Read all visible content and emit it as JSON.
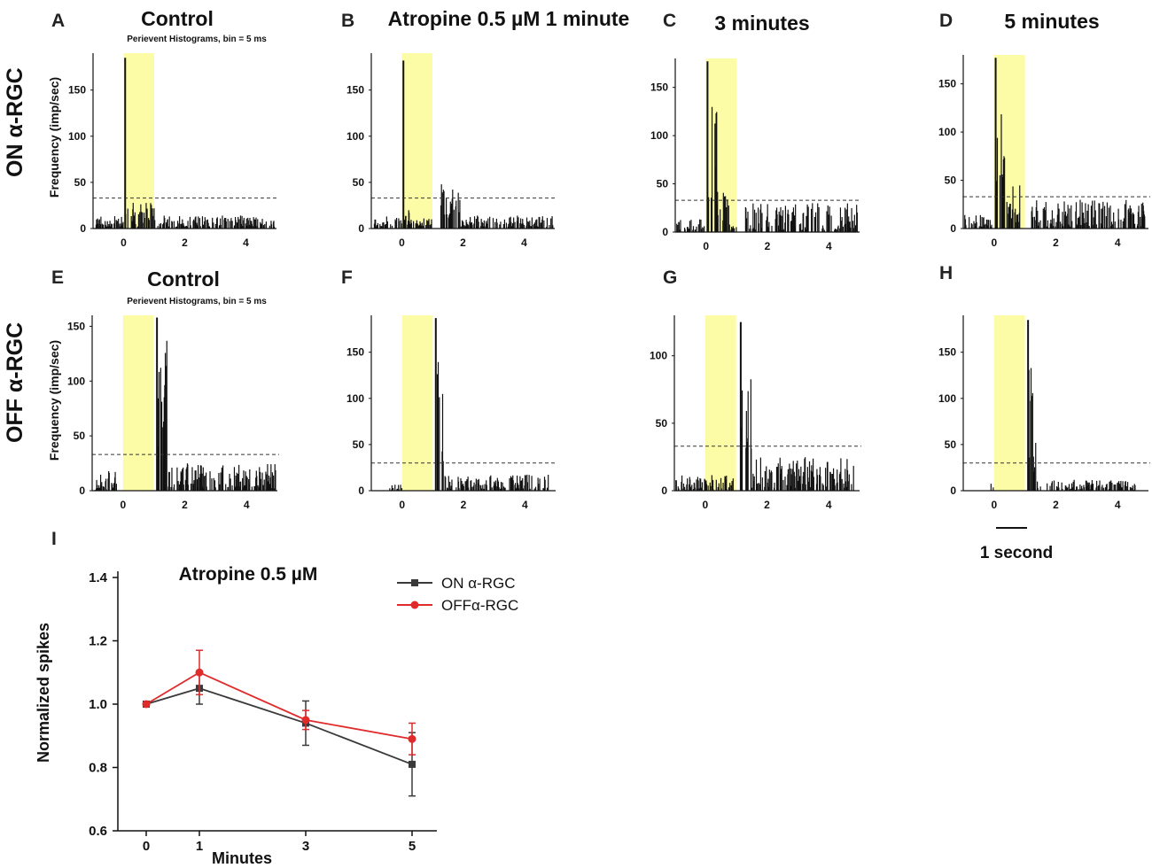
{
  "figure": {
    "row_labels": [
      "ON α-RGC",
      "OFF α-RGC"
    ],
    "ylabel": "Frequency (imp/sec)",
    "subtitle": "Perievent Histograms, bin = 5 ms",
    "scale_bar_label": "1 second",
    "colors": {
      "stimulus": "#fdfca6",
      "bars": "#111111",
      "threshold": "#333333",
      "on_series": "#3a3a3a",
      "off_series": "#e02b2b"
    }
  },
  "chart_data": [
    {
      "id": "A",
      "type": "bar",
      "cell": "ON",
      "title": "Control",
      "subtitle": "Perievent Histograms, bin = 5 ms",
      "xlim": [
        -1,
        5
      ],
      "ylim": [
        0,
        190
      ],
      "xticks": [
        0,
        2,
        4
      ],
      "yticks": [
        0,
        50,
        100,
        150
      ],
      "stimulus": [
        0,
        1
      ],
      "threshold": 33,
      "peak": {
        "x": 0.05,
        "y": 185
      },
      "seed": 11,
      "segments": [
        [
          -0.9,
          0,
          2,
          14
        ],
        [
          0.05,
          0.3,
          6,
          30
        ],
        [
          0.3,
          1,
          2,
          28
        ],
        [
          1,
          4.95,
          2,
          14
        ]
      ]
    },
    {
      "id": "B",
      "type": "bar",
      "cell": "ON",
      "title": "Atropine 0.5 µM 1 minute",
      "xlim": [
        -1,
        5
      ],
      "ylim": [
        0,
        190
      ],
      "xticks": [
        0,
        2,
        4
      ],
      "yticks": [
        0,
        50,
        100,
        150
      ],
      "stimulus": [
        0,
        1
      ],
      "threshold": 33,
      "peak": {
        "x": 0.05,
        "y": 182
      },
      "seed": 23,
      "segments": [
        [
          -0.9,
          0,
          2,
          14
        ],
        [
          0.05,
          0.25,
          4,
          20
        ],
        [
          0.25,
          1,
          3,
          12
        ],
        [
          1.25,
          1.9,
          12,
          48
        ],
        [
          1.9,
          4.95,
          2,
          14
        ]
      ]
    },
    {
      "id": "C",
      "type": "bar",
      "cell": "ON",
      "title": "3 minutes",
      "xlim": [
        -1,
        5
      ],
      "ylim": [
        0,
        180
      ],
      "xticks": [
        0,
        2,
        4
      ],
      "yticks": [
        0,
        50,
        100,
        150
      ],
      "stimulus": [
        0,
        1
      ],
      "threshold": 33,
      "peak": {
        "x": 0.05,
        "y": 177
      },
      "seed": 37,
      "segments": [
        [
          -0.95,
          -0.05,
          2,
          14
        ],
        [
          0.05,
          0.35,
          35,
          130
        ],
        [
          0.35,
          0.75,
          6,
          45
        ],
        [
          0.75,
          1,
          1,
          8
        ],
        [
          1.25,
          4.95,
          2,
          30
        ]
      ]
    },
    {
      "id": "D",
      "type": "bar",
      "cell": "ON",
      "title": "5 minutes",
      "xlim": [
        -1,
        5
      ],
      "ylim": [
        0,
        180
      ],
      "xticks": [
        0,
        2,
        4
      ],
      "yticks": [
        0,
        50,
        100,
        150
      ],
      "stimulus": [
        0,
        1
      ],
      "threshold": 33,
      "peak": {
        "x": 0.05,
        "y": 177
      },
      "seed": 41,
      "segments": [
        [
          -0.95,
          -0.05,
          2,
          14
        ],
        [
          0.05,
          0.35,
          35,
          120
        ],
        [
          0.35,
          0.85,
          5,
          45
        ],
        [
          1.2,
          4.95,
          2,
          30
        ]
      ]
    },
    {
      "id": "E",
      "type": "bar",
      "cell": "OFF",
      "title": "Control",
      "subtitle": "Perievent Histograms, bin = 5 ms",
      "xlim": [
        -1,
        5
      ],
      "ylim": [
        0,
        160
      ],
      "xticks": [
        0,
        2,
        4
      ],
      "yticks": [
        0,
        50,
        100,
        150
      ],
      "stimulus": [
        0,
        1
      ],
      "threshold": 33,
      "peak": {
        "x": 1.1,
        "y": 158
      },
      "seed": 53,
      "segments": [
        [
          -0.9,
          -0.2,
          0,
          18
        ],
        [
          1.1,
          1.45,
          30,
          140
        ],
        [
          1.45,
          4.95,
          2,
          25
        ]
      ]
    },
    {
      "id": "F",
      "type": "bar",
      "cell": "OFF",
      "xlim": [
        -1,
        5
      ],
      "ylim": [
        0,
        190
      ],
      "xticks": [
        0,
        2,
        4
      ],
      "yticks": [
        0,
        50,
        100,
        150
      ],
      "stimulus": [
        0,
        1
      ],
      "threshold": 30,
      "peak": {
        "x": 1.1,
        "y": 187
      },
      "seed": 67,
      "segments": [
        [
          -0.4,
          0,
          0,
          10
        ],
        [
          1.1,
          1.4,
          25,
          150
        ],
        [
          1.4,
          4.8,
          2,
          18
        ]
      ]
    },
    {
      "id": "G",
      "type": "bar",
      "cell": "OFF",
      "xlim": [
        -1,
        5
      ],
      "ylim": [
        0,
        130
      ],
      "xticks": [
        0,
        2,
        4
      ],
      "yticks": [
        0,
        50,
        100
      ],
      "stimulus": [
        0,
        1
      ],
      "threshold": 33,
      "peak": {
        "x": 1.15,
        "y": 125
      },
      "seed": 71,
      "segments": [
        [
          -0.95,
          1,
          0,
          12
        ],
        [
          1.15,
          1.5,
          25,
          95
        ],
        [
          1.5,
          4.85,
          2,
          25
        ]
      ]
    },
    {
      "id": "H",
      "type": "bar",
      "cell": "OFF",
      "xlim": [
        -1,
        5
      ],
      "ylim": [
        0,
        190
      ],
      "xticks": [
        0,
        2,
        4
      ],
      "yticks": [
        0,
        50,
        100,
        150
      ],
      "stimulus": [
        0,
        1
      ],
      "threshold": 30,
      "peak": {
        "x": 1.1,
        "y": 185
      },
      "seed": 83,
      "segments": [
        [
          -0.1,
          0,
          0,
          10
        ],
        [
          1.1,
          1.35,
          20,
          150
        ],
        [
          1.4,
          4.6,
          0,
          12
        ]
      ]
    },
    {
      "id": "I",
      "type": "line",
      "title": "Atropine 0.5 µM",
      "xlabel": "Minutes",
      "ylabel": "Normalized spikes",
      "x": [
        0,
        1,
        3,
        5
      ],
      "ylim": [
        0.6,
        1.4
      ],
      "yticks": [
        0.6,
        0.8,
        1.0,
        1.2,
        1.4
      ],
      "ytick_labels": [
        "0.6",
        "0.8",
        "1.0",
        "1.2",
        "1.4"
      ],
      "xtick_labels": [
        "0",
        "1",
        "3",
        "5"
      ],
      "series": [
        {
          "name": "ON α-RGC",
          "values": [
            1.0,
            1.05,
            0.94,
            0.81
          ],
          "errors": [
            0,
            0.05,
            0.07,
            0.1
          ],
          "color": "#3a3a3a",
          "marker": "square"
        },
        {
          "name": "OFFα-RGC",
          "values": [
            1.0,
            1.1,
            0.95,
            0.89
          ],
          "errors": [
            0,
            0.07,
            0.03,
            0.05
          ],
          "color": "#e02b2b",
          "marker": "circle"
        }
      ],
      "legend": "top-right"
    }
  ]
}
